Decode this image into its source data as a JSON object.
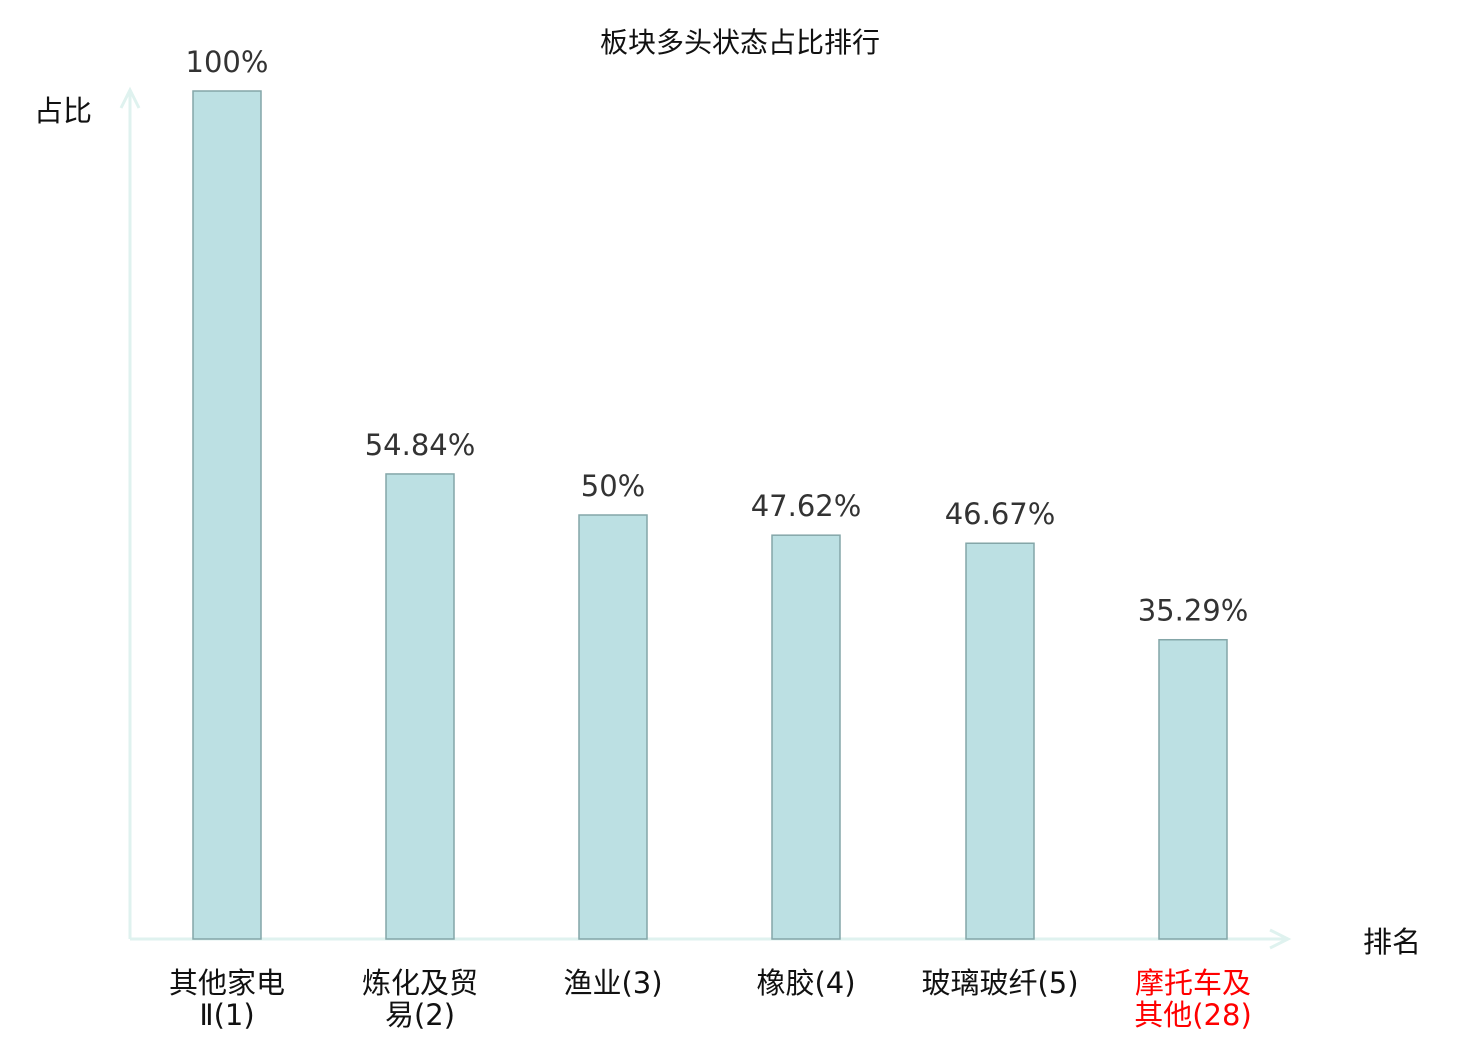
{
  "chart_data": {
    "type": "bar",
    "title": "板块多头状态占比排行",
    "ylabel": "占比",
    "xlabel": "排名",
    "categories": [
      "其他家电Ⅱ(1)",
      "炼化及贸易(2)",
      "渔业(3)",
      "橡胶(4)",
      "玻璃玻纤(5)",
      "摩托车及其他(28)"
    ],
    "values": [
      100,
      54.84,
      50,
      47.62,
      46.67,
      35.29
    ],
    "data_labels": [
      "100%",
      "54.84%",
      "50%",
      "47.62%",
      "46.67%",
      "35.29%"
    ],
    "ylim": [
      0,
      100
    ],
    "grid": false,
    "highlight_index": 5,
    "colors": {
      "bar_fill": "#bce0e3",
      "bar_stroke": "#84a6a8",
      "axis": "#dff2ef",
      "highlight_label": "#ff0000",
      "label": "#111111"
    }
  }
}
